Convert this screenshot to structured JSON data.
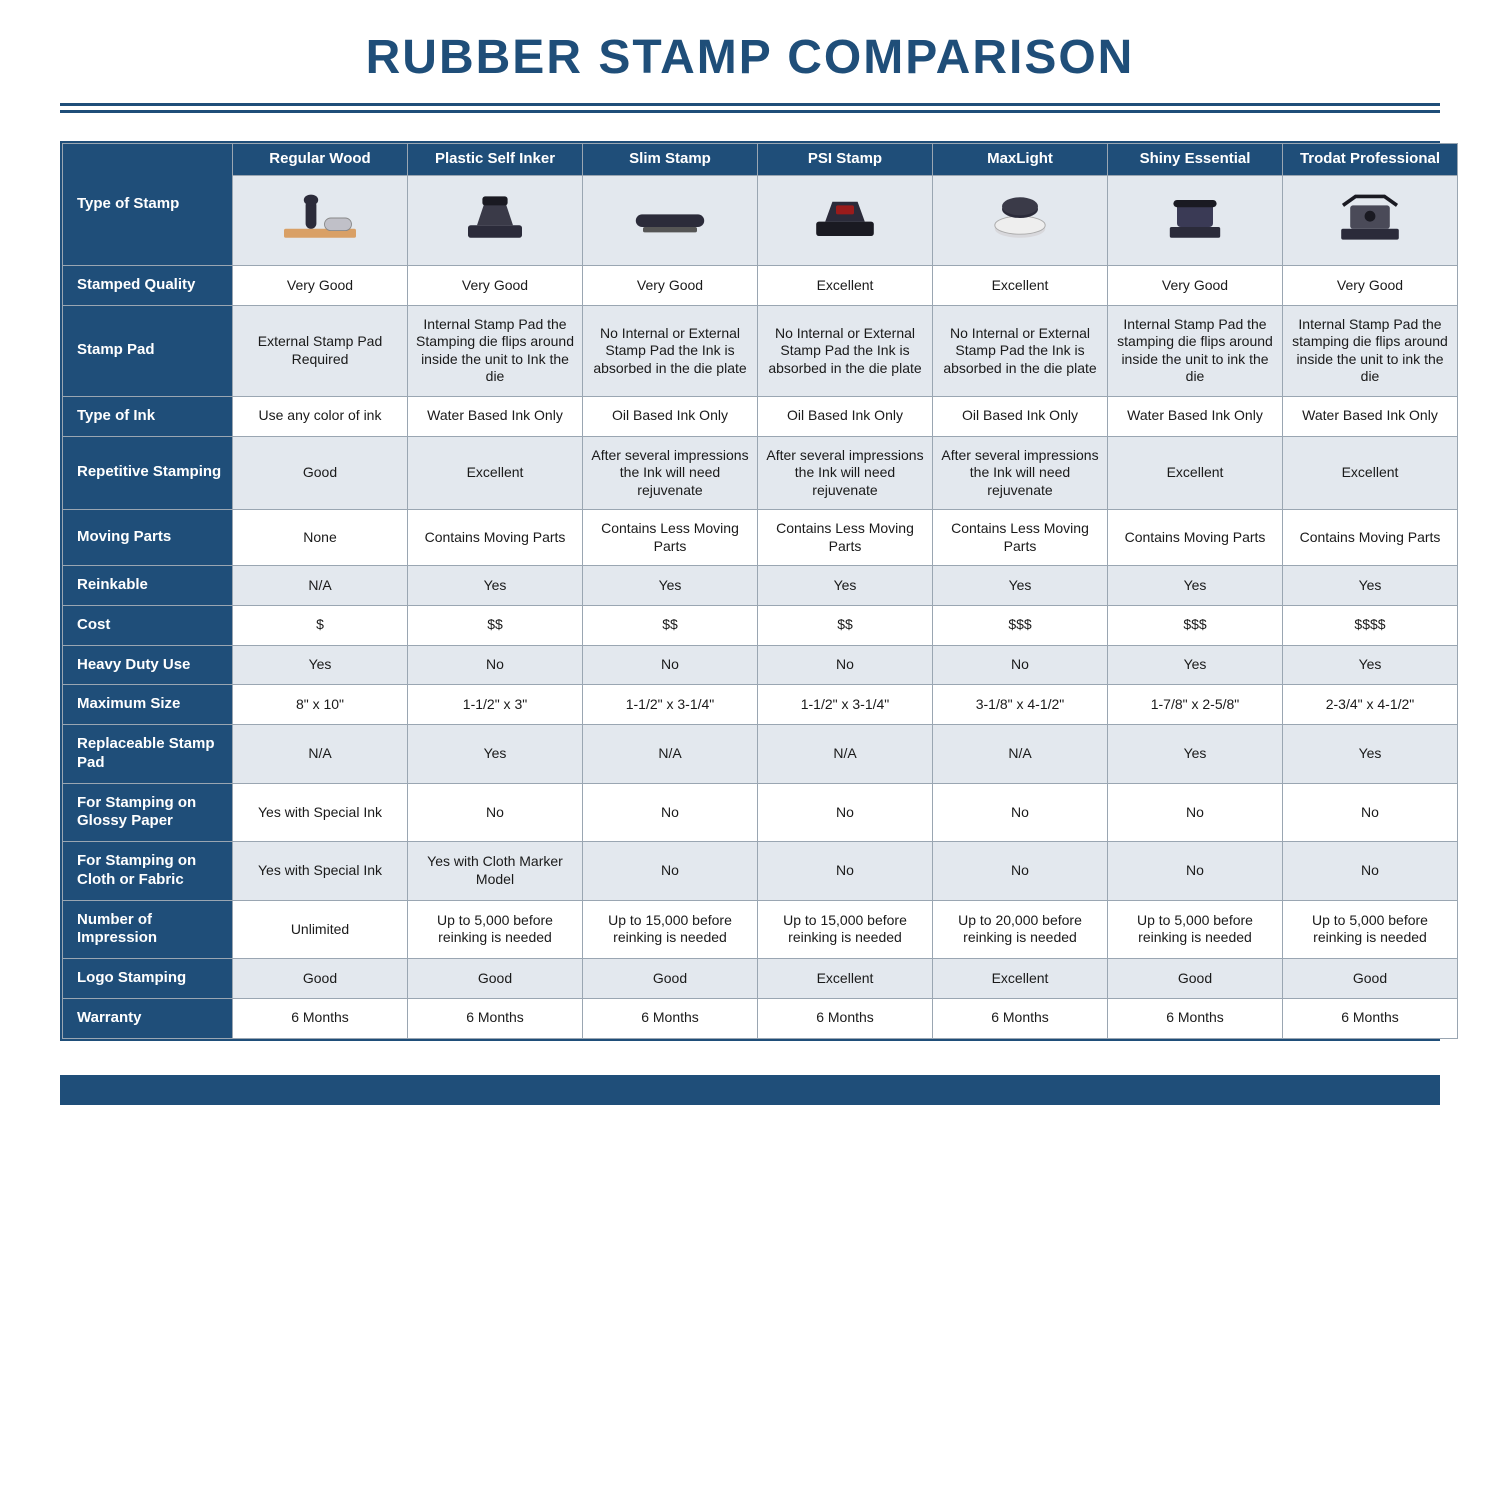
{
  "title": "RUBBER STAMP COMPARISON",
  "colors": {
    "brand": "#1f4e79",
    "band": "#e3e8ee",
    "border": "#9aa6b2",
    "text": "#1a1a1a",
    "white": "#ffffff"
  },
  "columns": [
    "Regular Wood",
    "Plastic Self Inker",
    "Slim Stamp",
    "PSI Stamp",
    "MaxLight",
    "Shiny Essential",
    "Trodat Professional"
  ],
  "image_row_label": "Type of Stamp",
  "rows": [
    {
      "label": "Stamped Quality",
      "band": false,
      "cells": [
        "Very Good",
        "Very Good",
        "Very Good",
        "Excellent",
        "Excellent",
        "Very Good",
        "Very Good"
      ]
    },
    {
      "label": "Stamp Pad",
      "band": true,
      "cells": [
        "External Stamp Pad Required",
        "Internal Stamp Pad the Stamping die flips around inside the unit to Ink the die",
        "No Internal or External Stamp Pad the Ink is absorbed in the die plate",
        "No Internal or External Stamp Pad the Ink is absorbed in the die plate",
        "No Internal or External Stamp Pad the Ink is absorbed in the die plate",
        "Internal Stamp Pad the stamping die flips around inside the unit to ink the die",
        "Internal Stamp Pad the stamping die flips around inside the unit to ink the die"
      ]
    },
    {
      "label": "Type of Ink",
      "band": false,
      "cells": [
        "Use any color of ink",
        "Water Based Ink Only",
        "Oil Based Ink Only",
        "Oil Based Ink Only",
        "Oil Based Ink Only",
        "Water Based Ink Only",
        "Water Based Ink Only"
      ]
    },
    {
      "label": "Repetitive Stamping",
      "band": true,
      "cells": [
        "Good",
        "Excellent",
        "After several impressions the Ink will need rejuvenate",
        "After several impressions the Ink will need rejuvenate",
        "After several impressions the Ink will need rejuvenate",
        "Excellent",
        "Excellent"
      ]
    },
    {
      "label": "Moving Parts",
      "band": false,
      "cells": [
        "None",
        "Contains Moving Parts",
        "Contains Less Moving Parts",
        "Contains Less Moving Parts",
        "Contains Less Moving Parts",
        "Contains Moving Parts",
        "Contains Moving Parts"
      ]
    },
    {
      "label": "Reinkable",
      "band": true,
      "cells": [
        "N/A",
        "Yes",
        "Yes",
        "Yes",
        "Yes",
        "Yes",
        "Yes"
      ]
    },
    {
      "label": "Cost",
      "band": false,
      "cells": [
        "$",
        "$$",
        "$$",
        "$$",
        "$$$",
        "$$$",
        "$$$$"
      ]
    },
    {
      "label": "Heavy Duty Use",
      "band": true,
      "cells": [
        "Yes",
        "No",
        "No",
        "No",
        "No",
        "Yes",
        "Yes"
      ]
    },
    {
      "label": "Maximum Size",
      "band": false,
      "cells": [
        "8\" x 10\"",
        "1-1/2\" x 3\"",
        "1-1/2\" x 3-1/4\"",
        "1-1/2\" x 3-1/4\"",
        "3-1/8\" x 4-1/2\"",
        "1-7/8\" x 2-5/8\"",
        "2-3/4\" x 4-1/2\""
      ]
    },
    {
      "label": "Replaceable Stamp Pad",
      "band": true,
      "cells": [
        "N/A",
        "Yes",
        "N/A",
        "N/A",
        "N/A",
        "Yes",
        "Yes"
      ]
    },
    {
      "label": "For Stamping on Glossy Paper",
      "band": false,
      "cells": [
        "Yes with Special Ink",
        "No",
        "No",
        "No",
        "No",
        "No",
        "No"
      ]
    },
    {
      "label": "For Stamping on Cloth or Fabric",
      "band": true,
      "cells": [
        "Yes with Special Ink",
        "Yes with Cloth Marker Model",
        "No",
        "No",
        "No",
        "No",
        "No"
      ]
    },
    {
      "label": "Number of Impression",
      "band": false,
      "cells": [
        "Unlimited",
        "Up to 5,000 before reinking is needed",
        "Up to 15,000 before reinking is needed",
        "Up to 15,000 before reinking is needed",
        "Up to 20,000 before reinking is needed",
        "Up to 5,000 before reinking is needed",
        "Up to 5,000 before reinking is needed"
      ]
    },
    {
      "label": "Logo Stamping",
      "band": true,
      "cells": [
        "Good",
        "Good",
        "Good",
        "Excellent",
        "Excellent",
        "Good",
        "Good"
      ]
    },
    {
      "label": "Warranty",
      "band": false,
      "cells": [
        "6 Months",
        "6 Months",
        "6 Months",
        "6 Months",
        "6 Months",
        "6 Months",
        "6 Months"
      ]
    }
  ],
  "icons": [
    "wood-stamp-icon",
    "self-inker-icon",
    "slim-stamp-icon",
    "psi-stamp-icon",
    "maxlight-stamp-icon",
    "shiny-essential-icon",
    "trodat-professional-icon"
  ]
}
